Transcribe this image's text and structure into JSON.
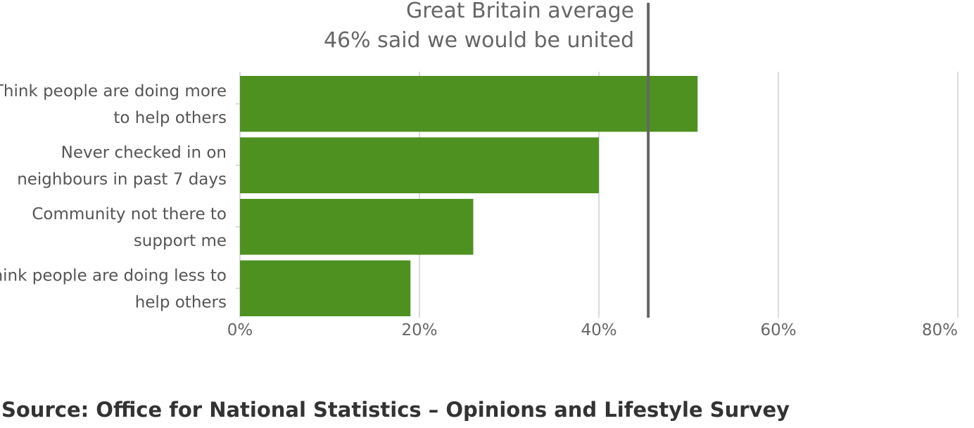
{
  "chart_data": {
    "type": "bar",
    "orientation": "horizontal",
    "categories": [
      [
        "Think people are doing more",
        "to help others"
      ],
      [
        "Never checked in on",
        "neighbours in past 7 days"
      ],
      [
        "Community not there to",
        "support me"
      ],
      [
        "Think people are doing less to",
        "help others"
      ]
    ],
    "values": [
      51,
      40,
      26,
      19
    ],
    "bar_color": "#4e9120",
    "xlim": [
      0,
      80
    ],
    "x_ticks": [
      {
        "value": 0,
        "label": "0%"
      },
      {
        "value": 20,
        "label": "20%"
      },
      {
        "value": 40,
        "label": "40%"
      },
      {
        "value": 60,
        "label": "60%"
      },
      {
        "value": 80,
        "label": "80%"
      }
    ],
    "grid": true,
    "reference_line": {
      "value": 45.5,
      "color": "#666666",
      "label_lines": [
        "Great Britain average",
        "46% said we would be united"
      ]
    }
  },
  "source": "Source: Office for National Statistics – Opinions and Lifestyle Survey"
}
